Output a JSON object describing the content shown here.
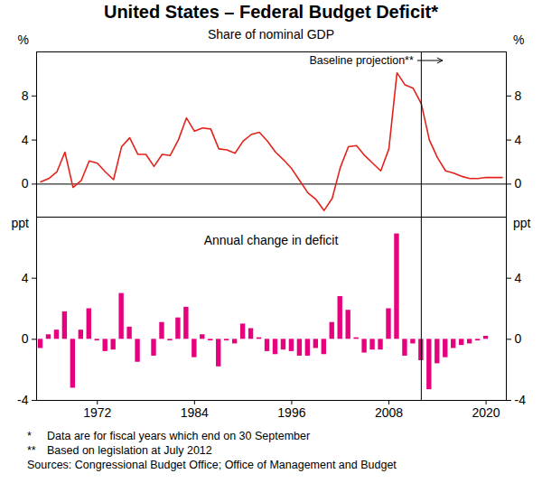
{
  "title": "United States – Federal Budget Deficit*",
  "notes": [
    {
      "marker": "*",
      "text": "Data are for fiscal years which end on 30 September"
    },
    {
      "marker": "**",
      "text": "Based on legislation at July 2012"
    }
  ],
  "sources": "Sources: Congressional Budget Office; Office of Management and Budget",
  "chart_data": [
    {
      "type": "line",
      "subtitle": "Share of nominal GDP",
      "y_unit": "%",
      "annotation": {
        "text": "Baseline projection**",
        "x": 2012
      },
      "color": "#e3231b",
      "tick_labels": "y",
      "grid": false,
      "x": [
        1965,
        1966,
        1967,
        1968,
        1969,
        1970,
        1971,
        1972,
        1973,
        1974,
        1975,
        1976,
        1977,
        1978,
        1979,
        1980,
        1981,
        1982,
        1983,
        1984,
        1985,
        1986,
        1987,
        1988,
        1989,
        1990,
        1991,
        1992,
        1993,
        1994,
        1995,
        1996,
        1997,
        1998,
        1999,
        2000,
        2001,
        2002,
        2003,
        2004,
        2005,
        2006,
        2007,
        2008,
        2009,
        2010,
        2011,
        2012,
        2013,
        2014,
        2015,
        2016,
        2017,
        2018,
        2019,
        2020,
        2021,
        2022
      ],
      "values": [
        0.2,
        0.5,
        1.1,
        2.9,
        -0.3,
        0.3,
        2.1,
        1.9,
        1.1,
        0.4,
        3.4,
        4.2,
        2.7,
        2.7,
        1.6,
        2.7,
        2.6,
        4.0,
        6.0,
        4.8,
        5.1,
        5.0,
        3.2,
        3.1,
        2.8,
        3.9,
        4.5,
        4.7,
        3.9,
        2.9,
        2.2,
        1.4,
        0.3,
        -0.8,
        -1.4,
        -2.4,
        -1.3,
        1.5,
        3.4,
        3.5,
        2.6,
        1.9,
        1.2,
        3.2,
        10.1,
        9.0,
        8.7,
        7.3,
        4.0,
        2.4,
        1.2,
        1.0,
        0.7,
        0.5,
        0.5,
        0.6,
        0.6,
        0.6
      ],
      "xlim": [
        1964.5,
        2022.5
      ],
      "xticks": [
        1972,
        1984,
        1996,
        2008,
        2020
      ],
      "ylim": [
        -3,
        12
      ],
      "yticks": [
        0,
        4,
        8
      ]
    },
    {
      "type": "bar",
      "subtitle": "Annual change in deficit",
      "y_unit": "ppt",
      "annotation": {
        "x": 2012
      },
      "color": "#e6007e",
      "grid": false,
      "x": [
        1965,
        1966,
        1967,
        1968,
        1969,
        1970,
        1971,
        1972,
        1973,
        1974,
        1975,
        1976,
        1977,
        1978,
        1979,
        1980,
        1981,
        1982,
        1983,
        1984,
        1985,
        1986,
        1987,
        1988,
        1989,
        1990,
        1991,
        1992,
        1993,
        1994,
        1995,
        1996,
        1997,
        1998,
        1999,
        2000,
        2001,
        2002,
        2003,
        2004,
        2005,
        2006,
        2007,
        2008,
        2009,
        2010,
        2011,
        2012,
        2013,
        2014,
        2015,
        2016,
        2017,
        2018,
        2019,
        2020,
        2021,
        2022
      ],
      "values": [
        -0.6,
        0.3,
        0.6,
        1.8,
        -3.2,
        0.6,
        2.0,
        -0.1,
        -0.8,
        -0.7,
        3.0,
        0.8,
        -1.5,
        0.0,
        -1.1,
        1.1,
        -0.1,
        1.4,
        2.1,
        -1.2,
        0.3,
        -0.1,
        -1.8,
        -0.1,
        -0.3,
        1.0,
        0.7,
        0.1,
        -0.8,
        -1.0,
        -0.7,
        -0.8,
        -1.1,
        -1.1,
        -0.6,
        -1.0,
        1.1,
        2.8,
        1.9,
        0.1,
        -0.9,
        -0.7,
        -0.7,
        2.0,
        6.9,
        -1.1,
        -0.3,
        -1.4,
        -3.3,
        -1.6,
        -1.2,
        -0.6,
        -0.4,
        -0.3,
        -0.1,
        0.2,
        0.0,
        0.0
      ],
      "xlim": [
        1964.5,
        2022.5
      ],
      "xticks": [
        1972,
        1984,
        1996,
        2008,
        2020
      ],
      "ylim": [
        -4,
        8
      ],
      "yticks": [
        -4,
        0,
        4
      ]
    }
  ]
}
